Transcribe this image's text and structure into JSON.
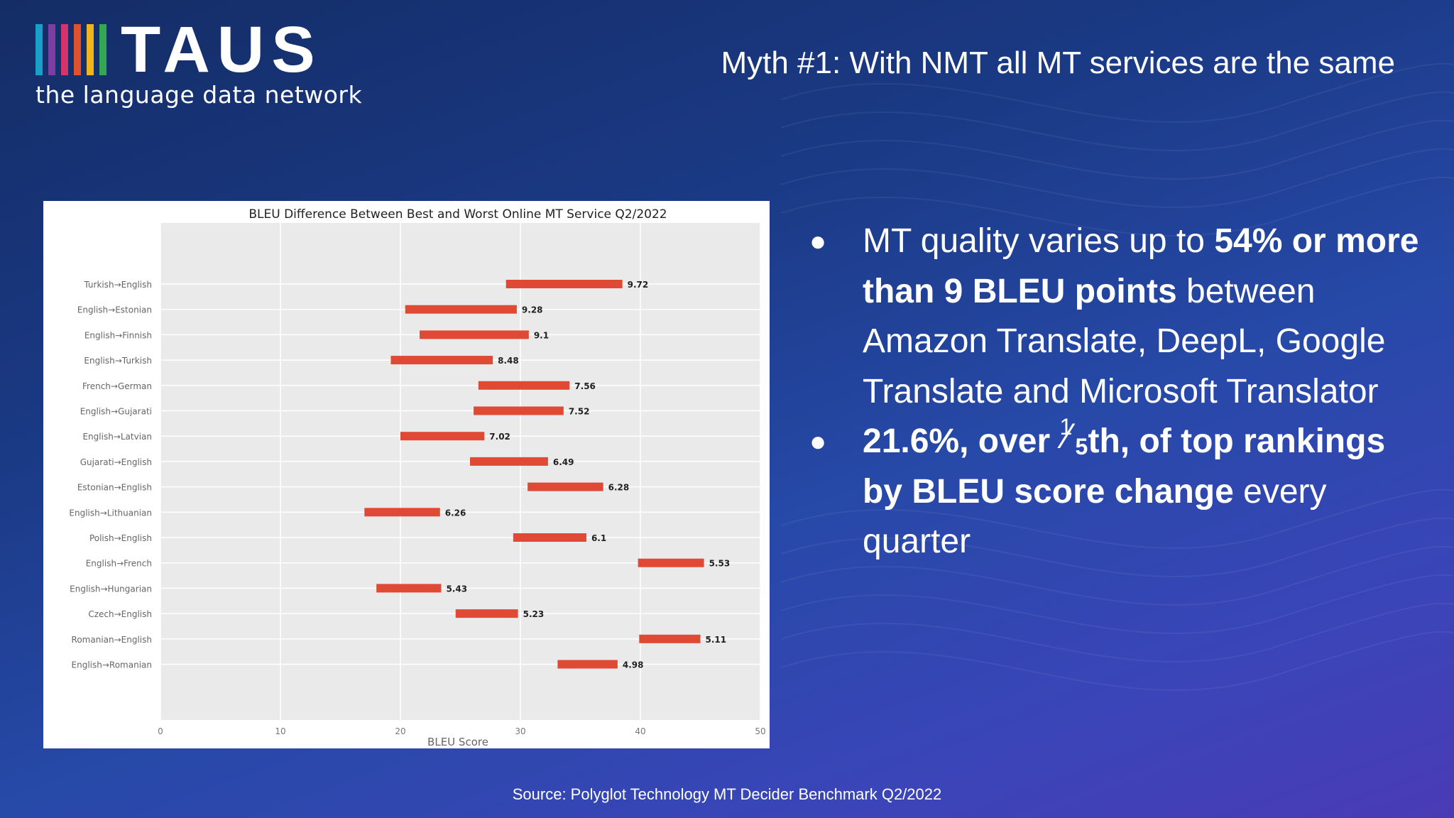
{
  "logo": {
    "wordmark": "TAUS",
    "tagline": "the language data network",
    "bar_colors": [
      "#1aa0c8",
      "#7a3fa0",
      "#d6336c",
      "#e0522d",
      "#f0b41c",
      "#32a852"
    ]
  },
  "slide": {
    "title": "Myth #1: With NMT all MT services are the same",
    "source": "Source: Polyglot Technology MT Decider Benchmark Q2/2022"
  },
  "bullets": {
    "b1": {
      "t1": "MT quality varies up to ",
      "t2": "54% or more than 9 BLEU points",
      "t3": " between Amazon Translate, DeepL, Google Translate and Microsoft Translator"
    },
    "b2": {
      "t1": "21.6%, over ",
      "frac_num": "1",
      "frac_den": "5",
      "t2": "th, of top rankings by BLEU score change",
      "t3": " every quarter"
    }
  },
  "colors": {
    "bar": "#e04a35",
    "plot_bg": "#eaeaea",
    "grid": "#ffffff"
  },
  "chart_data": {
    "type": "bar",
    "orientation": "horizontal-range",
    "title": "BLEU Difference Between Best and Worst Online MT Service Q2/2022",
    "xlabel": "BLEU Score",
    "ylabel": "",
    "xlim": [
      0,
      50
    ],
    "xticks": [
      0,
      10,
      20,
      30,
      40,
      50
    ],
    "xtick_labels": [
      "0",
      "10",
      "20",
      "30",
      "40",
      "50"
    ],
    "grid": true,
    "series": [
      {
        "categories": [
          "Turkish→English",
          "English→Estonian",
          "English→Finnish",
          "English→Turkish",
          "French→German",
          "English→Gujarati",
          "English→Latvian",
          "Gujarati→English",
          "Estonian→English",
          "English→Lithuanian",
          "Polish→English",
          "English→French",
          "English→Hungarian",
          "Czech→English",
          "Romanian→English",
          "English→Romanian"
        ],
        "start": [
          28.8,
          20.4,
          21.6,
          19.2,
          26.5,
          26.1,
          20.0,
          25.8,
          30.6,
          17.0,
          29.4,
          39.8,
          18.0,
          24.6,
          39.9,
          33.1
        ],
        "end": [
          38.5,
          29.7,
          30.7,
          27.7,
          34.1,
          33.6,
          27.0,
          32.3,
          36.9,
          23.3,
          35.5,
          45.3,
          23.4,
          29.8,
          45.0,
          38.1
        ],
        "values": [
          9.72,
          9.28,
          9.1,
          8.48,
          7.56,
          7.52,
          7.02,
          6.49,
          6.28,
          6.26,
          6.1,
          5.53,
          5.43,
          5.23,
          5.11,
          4.98
        ],
        "value_labels": [
          "9.72",
          "9.28",
          "9.1",
          "8.48",
          "7.56",
          "7.52",
          "7.02",
          "6.49",
          "6.28",
          "6.26",
          "6.1",
          "5.53",
          "5.43",
          "5.23",
          "5.11",
          "4.98"
        ]
      }
    ]
  }
}
